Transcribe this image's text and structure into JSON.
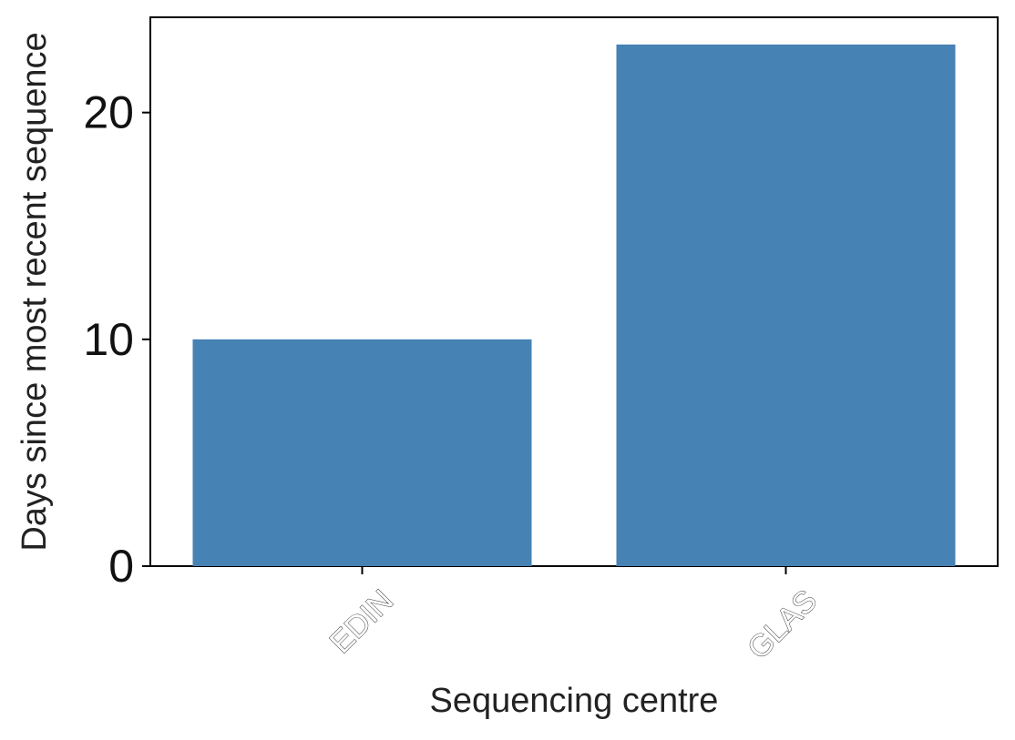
{
  "chart_data": {
    "type": "bar",
    "categories": [
      "EDIN",
      "GLAS"
    ],
    "values": [
      10,
      23
    ],
    "xlabel": "Sequencing centre",
    "ylabel": "Days since most recent sequence",
    "ylim": [
      0,
      24.2
    ],
    "yticks": [
      0,
      10,
      20
    ],
    "bar_color": "#4682b4",
    "grid": false,
    "legend": "none"
  }
}
